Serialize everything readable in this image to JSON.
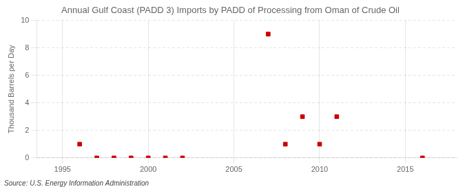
{
  "chart_data": {
    "type": "scatter",
    "title": "Annual Gulf Coast (PADD 3) Imports by PADD of Processing from Oman of Crude Oil",
    "y_label": "Thousand Barrels per Day",
    "annotations": [
      "Source: U.S. Energy Information Administration"
    ],
    "x": [
      1996,
      1997,
      1998,
      1999,
      2000,
      2001,
      2002,
      2007,
      2008,
      2009,
      2010,
      2011,
      2016
    ],
    "values": [
      1,
      0,
      0,
      0,
      0,
      0,
      0,
      9,
      1,
      3,
      1,
      3,
      0
    ],
    "color": "#cc0000",
    "marker": "square",
    "xlim": [
      1993.5,
      2018
    ],
    "xticks": [
      1995,
      2000,
      2005,
      2010,
      2015
    ],
    "ylim": [
      0,
      10
    ],
    "yticks": [
      0,
      2,
      4,
      6,
      8,
      10
    ],
    "grid": true
  }
}
